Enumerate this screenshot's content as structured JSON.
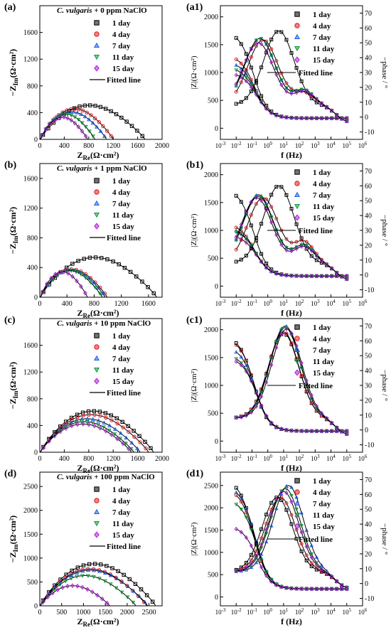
{
  "colors": {
    "1 day": "#000000",
    "4 day": "#e8181c",
    "7 day": "#1f5fe6",
    "11 day": "#129a3a",
    "15 day": "#b020d8"
  },
  "common": {
    "days": [
      "1 day",
      "4 day",
      "7 day",
      "11 day",
      "15 day"
    ],
    "fitted_label": "Fitted line",
    "nyq_xlabel_main": "Z",
    "nyq_xlabel_sub": "Re",
    "nyq_xlabel_unit": "(Ω·cm²)",
    "nyq_ylabel_main": "−Z",
    "nyq_ylabel_sub": "Im",
    "nyq_ylabel_unit": "(Ω·cm²)",
    "bode_ylabel_left": "|Z|(Ω·cm²)",
    "bode_ylabel_right": "−phase / °",
    "bode_xlabel": "f (Hz)"
  },
  "chart_data": [
    {
      "type": "scatter",
      "panel": "(a)",
      "title_species": "C. vulgaris",
      "title_rest": " + 0 ppm NaClO",
      "xlim": [
        0,
        2000
      ],
      "ylim": [
        0,
        2000
      ],
      "xticks": [
        0,
        400,
        800,
        1200,
        1600,
        2000
      ],
      "yticks": [
        0,
        400,
        800,
        1200,
        1600
      ],
      "series": [
        {
          "name": "1 day",
          "x_end": 1720,
          "peak": 580,
          "n": 20
        },
        {
          "name": "4 day",
          "x_end": 1200,
          "peak": 520,
          "n": 18
        },
        {
          "name": "7 day",
          "x_end": 1090,
          "peak": 470,
          "n": 17
        },
        {
          "name": "11 day",
          "x_end": 900,
          "peak": 430,
          "n": 15
        },
        {
          "name": "15 day",
          "x_end": 780,
          "peak": 380,
          "n": 13
        }
      ]
    },
    {
      "type": "line",
      "panel": "(a1)",
      "xlim_exp": [
        -3,
        6
      ],
      "ylim_left": [
        -200,
        2200
      ],
      "ylim_right": [
        -15,
        75
      ],
      "yticks_left": [
        0,
        500,
        1000,
        1500,
        2000
      ],
      "yticks_right": [
        -10,
        0,
        10,
        20,
        30,
        40,
        50,
        60,
        70
      ],
      "z_series": [
        {
          "name": "1 day",
          "z0": 1750
        },
        {
          "name": "4 day",
          "z0": 1320
        },
        {
          "name": "7 day",
          "z0": 1200
        },
        {
          "name": "11 day",
          "z0": 1100
        },
        {
          "name": "15 day",
          "z0": 1000
        }
      ],
      "phase_series": [
        {
          "name": "1 day",
          "pmax": 58,
          "fpk": 0.7,
          "shoulder": 0
        },
        {
          "name": "4 day",
          "pmax": 52,
          "fpk": -0.3,
          "shoulder": 8
        },
        {
          "name": "7 day",
          "pmax": 53,
          "fpk": -0.5,
          "shoulder": 10
        },
        {
          "name": "11 day",
          "pmax": 53,
          "fpk": -0.5,
          "shoulder": 10
        },
        {
          "name": "15 day",
          "pmax": 50,
          "fpk": -0.6,
          "shoulder": 9
        }
      ]
    },
    {
      "type": "scatter",
      "panel": "(b)",
      "title_species": "C. vulgaris",
      "title_rest": " + 1 ppm NaClO",
      "xlim": [
        0,
        1800
      ],
      "ylim": [
        0,
        1800
      ],
      "xticks": [
        0,
        400,
        800,
        1200,
        1600
      ],
      "yticks": [
        0,
        400,
        800,
        1200,
        1600
      ],
      "series": [
        {
          "name": "1 day",
          "x_end": 1720,
          "peak": 610,
          "n": 20
        },
        {
          "name": "4 day",
          "x_end": 990,
          "peak": 430,
          "n": 14
        },
        {
          "name": "7 day",
          "x_end": 960,
          "peak": 420,
          "n": 14
        },
        {
          "name": "11 day",
          "x_end": 920,
          "peak": 410,
          "n": 13
        },
        {
          "name": "15 day",
          "x_end": 700,
          "peak": 390,
          "n": 11
        }
      ]
    },
    {
      "type": "line",
      "panel": "(b1)",
      "xlim_exp": [
        -3,
        6
      ],
      "ylim_left": [
        -200,
        2200
      ],
      "ylim_right": [
        -15,
        75
      ],
      "yticks_left": [
        0,
        500,
        1000,
        1500,
        2000
      ],
      "yticks_right": [
        -10,
        0,
        10,
        20,
        30,
        40,
        50,
        60,
        70
      ],
      "z_series": [
        {
          "name": "1 day",
          "z0": 1750
        },
        {
          "name": "4 day",
          "z0": 1120
        },
        {
          "name": "7 day",
          "z0": 1050
        },
        {
          "name": "11 day",
          "z0": 1020
        },
        {
          "name": "15 day",
          "z0": 920
        }
      ],
      "phase_series": [
        {
          "name": "1 day",
          "pmax": 60,
          "fpk": 0.7,
          "shoulder": 0
        },
        {
          "name": "4 day",
          "pmax": 52,
          "fpk": -0.3,
          "shoulder": 14
        },
        {
          "name": "7 day",
          "pmax": 54,
          "fpk": -0.6,
          "shoulder": 12
        },
        {
          "name": "11 day",
          "pmax": 53,
          "fpk": -0.6,
          "shoulder": 12
        },
        {
          "name": "15 day",
          "pmax": 52,
          "fpk": -0.7,
          "shoulder": 11
        }
      ]
    },
    {
      "type": "scatter",
      "panel": "(c)",
      "title_species": "C. vulgaris",
      "title_rest": " + 10 ppm NaClO",
      "xlim": [
        0,
        2000
      ],
      "ylim": [
        0,
        2000
      ],
      "xticks": [
        0,
        400,
        800,
        1200,
        1600,
        2000
      ],
      "yticks": [
        0,
        400,
        800,
        1200,
        1600
      ],
      "series": [
        {
          "name": "1 day",
          "x_end": 1860,
          "peak": 700,
          "n": 20
        },
        {
          "name": "4 day",
          "x_end": 1780,
          "peak": 640,
          "n": 19
        },
        {
          "name": "7 day",
          "x_end": 1640,
          "peak": 570,
          "n": 18
        },
        {
          "name": "11 day",
          "x_end": 1540,
          "peak": 520,
          "n": 17
        },
        {
          "name": "15 day",
          "x_end": 1500,
          "peak": 480,
          "n": 16
        }
      ]
    },
    {
      "type": "line",
      "panel": "(c1)",
      "xlim_exp": [
        -3,
        6
      ],
      "ylim_left": [
        -200,
        2200
      ],
      "ylim_right": [
        -15,
        75
      ],
      "yticks_left": [
        0,
        500,
        1000,
        1500,
        2000
      ],
      "yticks_right": [
        -10,
        0,
        10,
        20,
        30,
        40,
        50,
        60,
        70
      ],
      "z_series": [
        {
          "name": "1 day",
          "z0": 1900
        },
        {
          "name": "4 day",
          "z0": 1850
        },
        {
          "name": "7 day",
          "z0": 1700
        },
        {
          "name": "11 day",
          "z0": 1560
        },
        {
          "name": "15 day",
          "z0": 1500
        }
      ],
      "phase_series": [
        {
          "name": "1 day",
          "pmax": 65,
          "fpk": 1.0,
          "shoulder": 0
        },
        {
          "name": "4 day",
          "pmax": 66,
          "fpk": 1.0,
          "shoulder": 0
        },
        {
          "name": "7 day",
          "pmax": 70,
          "fpk": 1.1,
          "shoulder": 0
        },
        {
          "name": "11 day",
          "pmax": 69,
          "fpk": 1.1,
          "shoulder": 0
        },
        {
          "name": "15 day",
          "pmax": 68,
          "fpk": 1.2,
          "shoulder": 0
        }
      ]
    },
    {
      "type": "scatter",
      "panel": "(d)",
      "title_species": "C. vulgaris",
      "title_rest": " + 100 ppm NaClO",
      "xlim": [
        0,
        2800
      ],
      "ylim": [
        0,
        2800
      ],
      "xticks": [
        0,
        500,
        1000,
        1500,
        2000,
        2500
      ],
      "yticks": [
        0,
        500,
        1000,
        1500,
        2000,
        2500
      ],
      "series": [
        {
          "name": "1 day",
          "x_end": 2650,
          "peak": 1000,
          "n": 20
        },
        {
          "name": "4 day",
          "x_end": 2450,
          "peak": 880,
          "n": 19
        },
        {
          "name": "7 day",
          "x_end": 2470,
          "peak": 850,
          "n": 19
        },
        {
          "name": "11 day",
          "x_end": 2200,
          "peak": 720,
          "n": 17
        },
        {
          "name": "15 day",
          "x_end": 1600,
          "peak": 480,
          "n": 14
        }
      ]
    },
    {
      "type": "line",
      "panel": "(d1)",
      "xlim_exp": [
        -3,
        6
      ],
      "ylim_left": [
        -200,
        2800
      ],
      "ylim_right": [
        -15,
        75
      ],
      "yticks_left": [
        0,
        500,
        1000,
        1500,
        2000,
        2500
      ],
      "yticks_right": [
        -10,
        0,
        10,
        20,
        30,
        40,
        50,
        60,
        70
      ],
      "z_series": [
        {
          "name": "1 day",
          "z0": 2650
        },
        {
          "name": "4 day",
          "z0": 2450
        },
        {
          "name": "7 day",
          "z0": 2500
        },
        {
          "name": "11 day",
          "z0": 2200
        },
        {
          "name": "15 day",
          "z0": 1600
        }
      ],
      "phase_series": [
        {
          "name": "1 day",
          "pmax": 58,
          "fpk": 0.6,
          "shoulder": 0
        },
        {
          "name": "4 day",
          "pmax": 58,
          "fpk": 0.8,
          "shoulder": 0
        },
        {
          "name": "7 day",
          "pmax": 66,
          "fpk": 1.3,
          "shoulder": 0
        },
        {
          "name": "11 day",
          "pmax": 64,
          "fpk": 1.1,
          "shoulder": 0
        },
        {
          "name": "15 day",
          "pmax": 62,
          "fpk": 1.0,
          "shoulder": 0
        }
      ]
    }
  ]
}
